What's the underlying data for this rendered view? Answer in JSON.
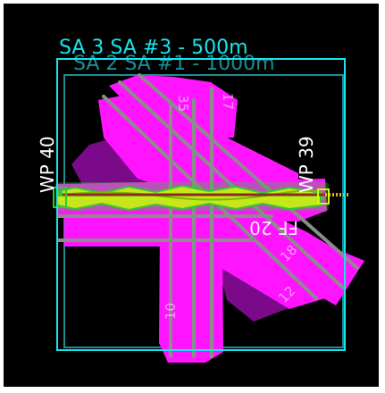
{
  "map": {
    "search_areas": [
      {
        "label": "SA 3 SA #3 - 500m",
        "color": "#18e4ee"
      },
      {
        "label": "SA 2 SA #1 - 1000m",
        "color": "#1a8f95"
      }
    ],
    "waypoints": [
      {
        "label": "WP 40"
      },
      {
        "label": "WP 39"
      }
    ],
    "runway_labels": [
      "FF 20",
      "17",
      "35",
      "10",
      "18",
      "12"
    ],
    "colors": {
      "background": "#000000",
      "airfield_fill": "#ff14ff",
      "apron_fill": "#7a0a8a",
      "runway_line": "#8c8c8c",
      "track": "#c8ff00",
      "track_outline": "#35c735",
      "route_line": "#8a2a2a",
      "marker": "#ffaa00"
    }
  }
}
